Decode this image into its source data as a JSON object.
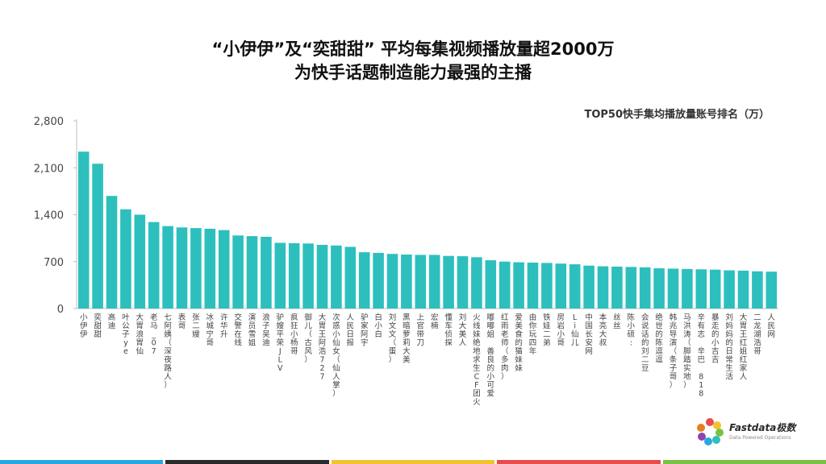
{
  "header": {
    "title_line1": "“小伊伊”及“奕甜甜” 平均每集视频播放量超2000万",
    "title_line2": "为快手话题制造能力最强的主播"
  },
  "chart_data": {
    "type": "bar",
    "title": "TOP50快手集均播放量账号排名（万）",
    "xlabel": "",
    "ylabel": "",
    "ylim": [
      0,
      2800
    ],
    "yticks": [
      0,
      700,
      1400,
      2100,
      2800
    ],
    "ytick_labels": [
      "0",
      "700",
      "1,400",
      "2,100",
      "2,800"
    ],
    "grid": false,
    "bar_color": "#2DBFBE",
    "categories": [
      "小伊伊",
      "奕甜甜",
      "高迪",
      "叶公子ye",
      "大胃浪胃仙",
      "老马_07",
      "七阿姨（深夜路人）",
      "表哥",
      "张二嫂",
      "冰城宁哥",
      "许华升",
      "交警在线",
      "演员雪姐",
      "浪子吴迪",
      "驴嫂平荣JLV",
      "疯狂小杨哥",
      "御儿（古风）",
      "大胃王阿浩727",
      "次惑小仙女（仙人掌）",
      "人民日报",
      "驴家阿宇",
      "白小白",
      "刘文文（蛋）",
      "黑暗萝莉大美",
      "上官带刀",
      "宏楠",
      "懂车侦探",
      "刘大美人",
      "火线妹绝地求生CF团火",
      "嘟嘟姐 善良的小可爱",
      "红雨老师（多肉）",
      "爱美食的猫妹妹",
      "由你玩四年",
      "铁娃二弟",
      "房岩小哥",
      "Li仙儿",
      "中国长安网",
      "本亮大叔",
      "丝丝",
      "陈小硕:",
      "会说话的刘二豆",
      "绝世的陈逗逗",
      "韩兆导演（条子哥）",
      "马洪涛（脚踏实地）",
      "辛有志 辛巴 818",
      "暴走的小吉吉",
      "刘妈妈的日常生活",
      "大胃王红姐红家人",
      "二龙湖浩哥",
      "人民网"
    ],
    "values": [
      2340,
      2160,
      1680,
      1480,
      1400,
      1290,
      1230,
      1210,
      1200,
      1190,
      1170,
      1090,
      1080,
      1070,
      980,
      975,
      970,
      950,
      940,
      920,
      840,
      830,
      815,
      805,
      800,
      800,
      785,
      780,
      765,
      720,
      700,
      690,
      685,
      680,
      670,
      660,
      640,
      630,
      625,
      620,
      615,
      600,
      595,
      590,
      585,
      580,
      570,
      565,
      555,
      550
    ]
  },
  "logo": {
    "name": "Fastdata极数",
    "tagline": "Data Powered Operations"
  },
  "colors": {
    "bar": "#2DBFBE",
    "footer": [
      "#29A8DF",
      "#2B2B2B",
      "#F2C230",
      "#E84C4C",
      "#7BC143"
    ]
  }
}
